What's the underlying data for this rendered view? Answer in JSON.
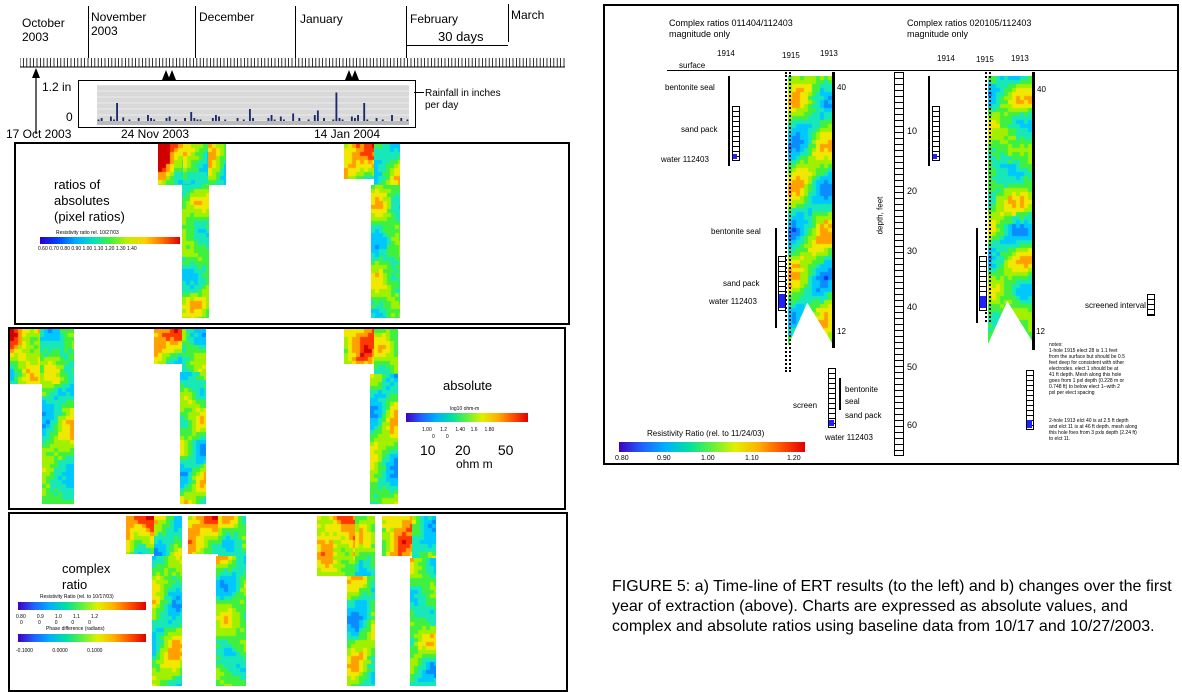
{
  "timeline": {
    "months": [
      {
        "name": "October\n2003"
      },
      {
        "name": "November\n2003"
      },
      {
        "name": "December"
      },
      {
        "name": "January"
      },
      {
        "name": "February"
      },
      {
        "name": "March"
      }
    ],
    "scale_label": "30 days",
    "survey_dates": [
      "17 Oct 2003",
      "24 Nov 2003",
      "14 Jan 2004"
    ]
  },
  "chart_data": {
    "type": "bar",
    "title": "",
    "ylabel": "Rainfall in inches per day",
    "ytick_top": "1.2 in",
    "ytick_bottom": "0",
    "ylim": [
      0,
      1.2
    ],
    "values": [
      0.05,
      0.1,
      0,
      0,
      0.15,
      0.05,
      0.6,
      0,
      0.12,
      0,
      0.05,
      0,
      0,
      0.1,
      0,
      0,
      0.2,
      0.1,
      0.05,
      0,
      0,
      0,
      0.1,
      0.15,
      0,
      0.05,
      0,
      0,
      0.1,
      0,
      0.3,
      0.1,
      0.05,
      0.05,
      0,
      0,
      0,
      0.1,
      0.2,
      0.15,
      0,
      0.05,
      0,
      0,
      0,
      0.1,
      0,
      0.05,
      0,
      0.4,
      0.1,
      0,
      0,
      0,
      0,
      0.1,
      0.2,
      0.05,
      0,
      0.15,
      0.05,
      0,
      0,
      0.25,
      0,
      0.1,
      0,
      0,
      0.05,
      0,
      0.2,
      0.35,
      0,
      0.1,
      0,
      0,
      0.05,
      0.95,
      0.1,
      0.05,
      0,
      0,
      0.15,
      0.1,
      0.2,
      0,
      0.6,
      0.05,
      0,
      0,
      0.1,
      0,
      0.05,
      0,
      0,
      0.2,
      0,
      0,
      0.1,
      0,
      0.05
    ]
  },
  "left_panels": {
    "ratios": {
      "label": "ratios of\nabsolutes\n(pixel ratios)",
      "colorbar_title": "Resistivity ratio rel. 10/27/03",
      "colorbar_ticks": "0.60 0.70 0.80 0.90 1.00 1.10 1.20 1.30 1.40"
    },
    "absolute": {
      "label": "absolute",
      "colorbar_title": "log10 ohm-m",
      "colorbar_ticks": "1.00      1.2      1.40    1.6     1.80",
      "colorbar_subticks": "0        0",
      "unit_values": "10     20       50",
      "unit": "ohm m"
    },
    "complex": {
      "label": "complex\nratio",
      "colorbar1_title": "Resistivity Ratio (rel. to 10/17/03)",
      "colorbar1_ticks": "0.80        0.9        1.0        1.1        1.2",
      "colorbar1_subticks": "0           0          0          0          0",
      "colorbar2_title": "Phase difference (radians)",
      "colorbar2_ticks": "-0.1000              0.0000              0.1000"
    }
  },
  "right_figure": {
    "title_left": "Complex ratios 011404/112403\nmagnitude only",
    "title_right": "Complex ratios 020105/112403\nmagnitude only",
    "holes": [
      "1914",
      "1915",
      "1913"
    ],
    "surface": "surface",
    "labels": {
      "bentonite_seal": "bentonite seal",
      "sand_pack": "sand pack",
      "water": "water 112403",
      "screen": "screen",
      "bentonite": "bentonite",
      "seal": "seal",
      "screened_interval": "screened interval",
      "depth_axis": "depth, feet",
      "elect_top": "40",
      "elect_bottom": "12"
    },
    "depth_ticks": [
      "10",
      "20",
      "30",
      "40",
      "50",
      "60"
    ],
    "notes_1": "notes:\n1-hole 1915 elect 28 is 1.1 feet\nfrom the surface but should be 0.5\nfeet deep for consistent with other\nelectrodes. elect 1 should be at\n41 ft depth. Mesh along this hole\ngoes from 1 pxl depth (0.228 m or\n0.748 ft) to below elect 1--with 2\npxl per elect spacing",
    "notes_2": "2-hole 1913 elct 40 is at 2.5 ft depth\nand elct 11 is at 46 ft depth. mesh along\nthis hole foes from 3 pxls depth (2.24 ft)\nto elct 11.",
    "colorbar_title": "Resistivity Ratio (rel. to 11/24/03)",
    "colorbar_ticks": [
      "0.80",
      "0.90",
      "1.00",
      "1.10",
      "1.20"
    ]
  },
  "caption": " FIGURE 5:  a) Time-line of ERT results (to the left) and b) changes over the first year of extraction (above).  Charts are expressed as absolute values, and complex and absolute ratios using baseline data from 10/17 and 10/27/2003."
}
